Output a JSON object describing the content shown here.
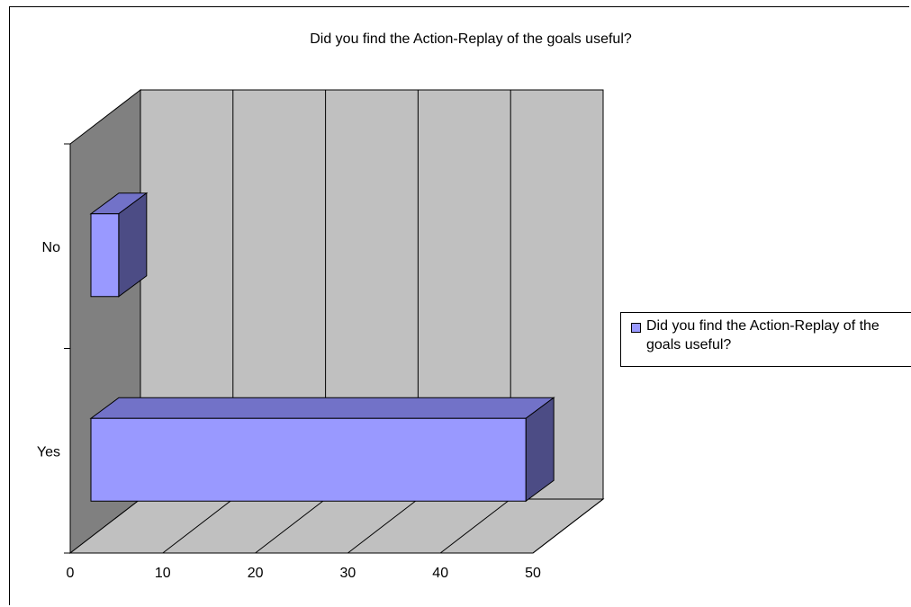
{
  "chart_data": {
    "type": "bar",
    "orientation": "horizontal",
    "style": "3d",
    "title": "Did you find the Action-Replay of the goals useful?",
    "categories": [
      "No",
      "Yes"
    ],
    "series": [
      {
        "name": "Did you find the Action-Replay of the goals useful?",
        "values": [
          3,
          47
        ]
      }
    ],
    "xlim": [
      0,
      50
    ],
    "x_ticks": [
      "0",
      "10",
      "20",
      "30",
      "40",
      "50"
    ],
    "xlabel": "",
    "ylabel": "",
    "grid": true,
    "legend": "right",
    "colors": {
      "bar_front": "#9999ff",
      "bar_top": "#7272c8",
      "bar_side": "#4c4c85",
      "wall": "#c0c0c0",
      "side_wall": "#808080"
    }
  },
  "legend": {
    "label": "Did you find the Action-Replay of the goals useful?"
  }
}
